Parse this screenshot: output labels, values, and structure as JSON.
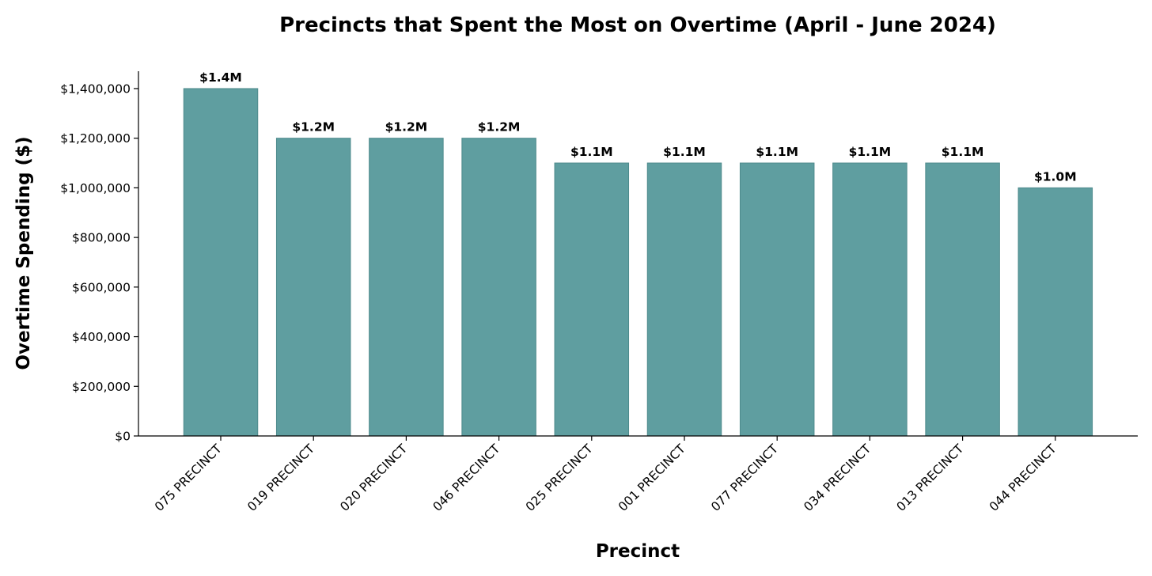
{
  "chart_data": {
    "type": "bar",
    "title": "Precincts that Spent the Most on Overtime (April - June 2024)",
    "xlabel": "Precinct",
    "ylabel": "Overtime Spending ($)",
    "categories": [
      "075 PRECINCT",
      "019 PRECINCT",
      "020 PRECINCT",
      "046 PRECINCT",
      "025 PRECINCT",
      "001 PRECINCT",
      "077 PRECINCT",
      "034 PRECINCT",
      "013 PRECINCT",
      "044 PRECINCT"
    ],
    "values": [
      1400000,
      1200000,
      1200000,
      1200000,
      1100000,
      1100000,
      1100000,
      1100000,
      1100000,
      1000000
    ],
    "data_labels": [
      "$1.4M",
      "$1.2M",
      "$1.2M",
      "$1.2M",
      "$1.1M",
      "$1.1M",
      "$1.1M",
      "$1.1M",
      "$1.1M",
      "$1.0M"
    ],
    "yticks": [
      0,
      200000,
      400000,
      600000,
      800000,
      1000000,
      1200000,
      1400000
    ],
    "ytick_labels": [
      "$0",
      "$200,000",
      "$400,000",
      "$600,000",
      "$800,000",
      "$1,000,000",
      "$1,200,000",
      "$1,400,000"
    ],
    "ylim": [
      0,
      1470000
    ],
    "grid": false,
    "bar_color": "#5f9ea0"
  }
}
